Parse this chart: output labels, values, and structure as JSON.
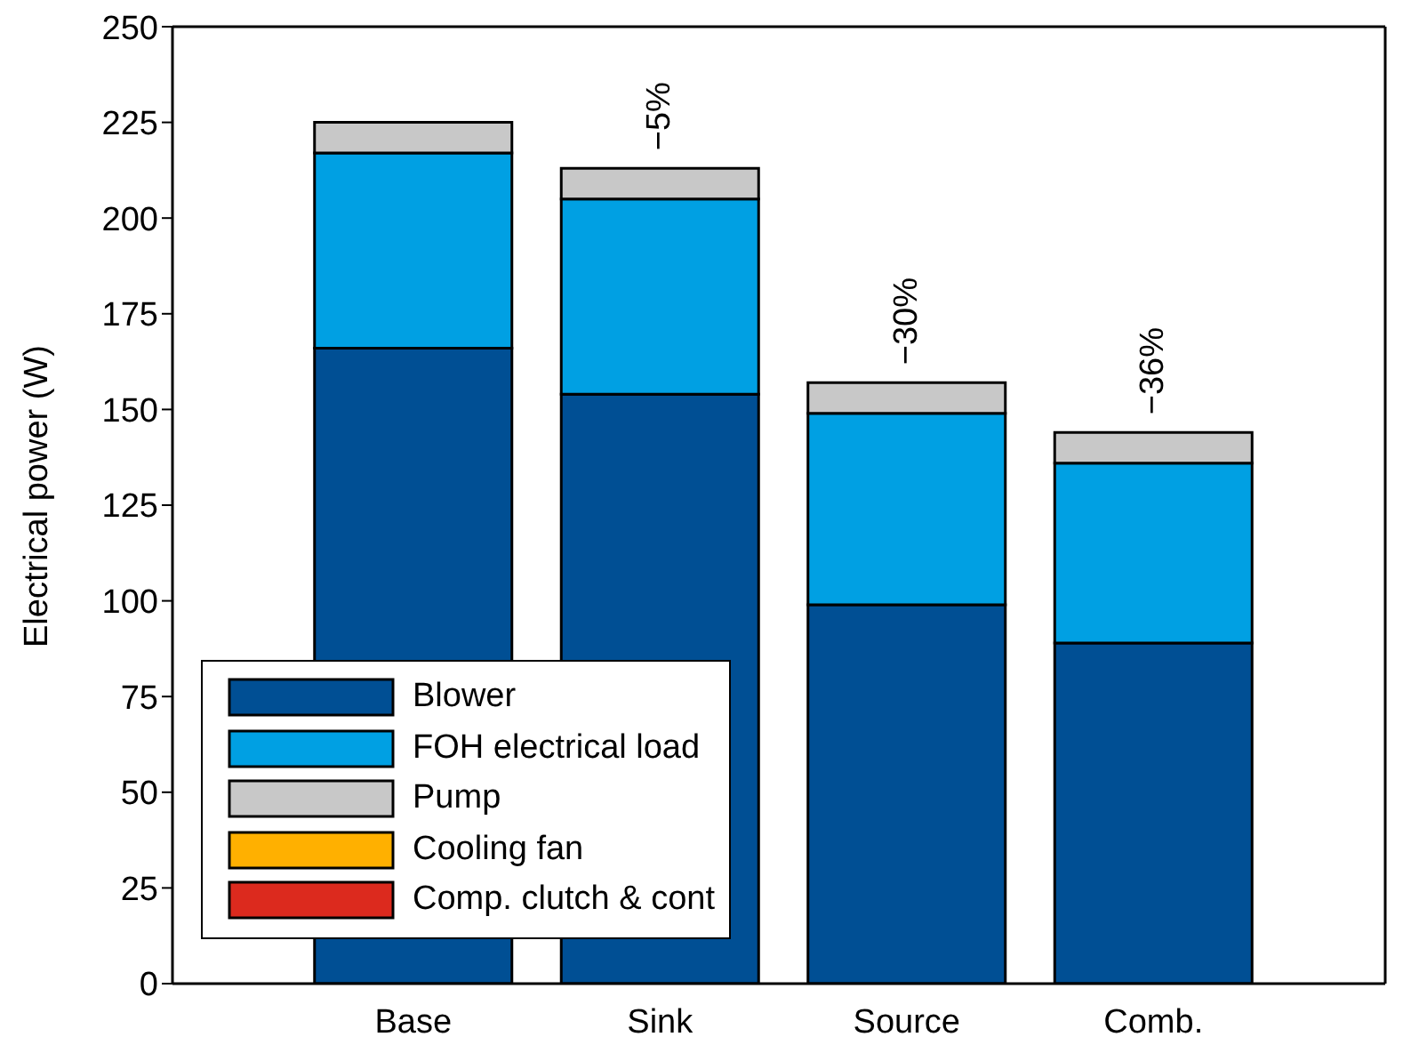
{
  "chart_data": {
    "type": "bar",
    "stacked": true,
    "ylabel": "Electrical power (W)",
    "categories": [
      "Base",
      "Sink",
      "Source",
      "Comb."
    ],
    "series": [
      {
        "name": "Blower",
        "color": "#004f94",
        "values": [
          166,
          154,
          99,
          89
        ]
      },
      {
        "name": "FOH electrical load",
        "color": "#00a0e3",
        "values": [
          51,
          51,
          50,
          47
        ]
      },
      {
        "name": "Pump",
        "color": "#c8c8c8",
        "values": [
          8,
          8,
          8,
          8
        ]
      },
      {
        "name": "Cooling fan",
        "color": "#ffb000",
        "values": [
          0,
          0,
          0,
          0
        ]
      },
      {
        "name": "Comp. clutch & cont",
        "color": "#dc2a1e",
        "values": [
          0,
          0,
          0,
          0
        ]
      }
    ],
    "ylim": [
      0,
      250
    ],
    "yticks": [
      0,
      25,
      50,
      75,
      100,
      125,
      150,
      175,
      200,
      225,
      250
    ],
    "annotations": [
      {
        "text": "−5%",
        "x": "Sink",
        "y": 213
      },
      {
        "text": "−30%",
        "x": "Source",
        "y": 157
      },
      {
        "text": "−36%",
        "x": "Comb.",
        "y": 144
      }
    ],
    "legend": "bottom left",
    "grid": false
  }
}
